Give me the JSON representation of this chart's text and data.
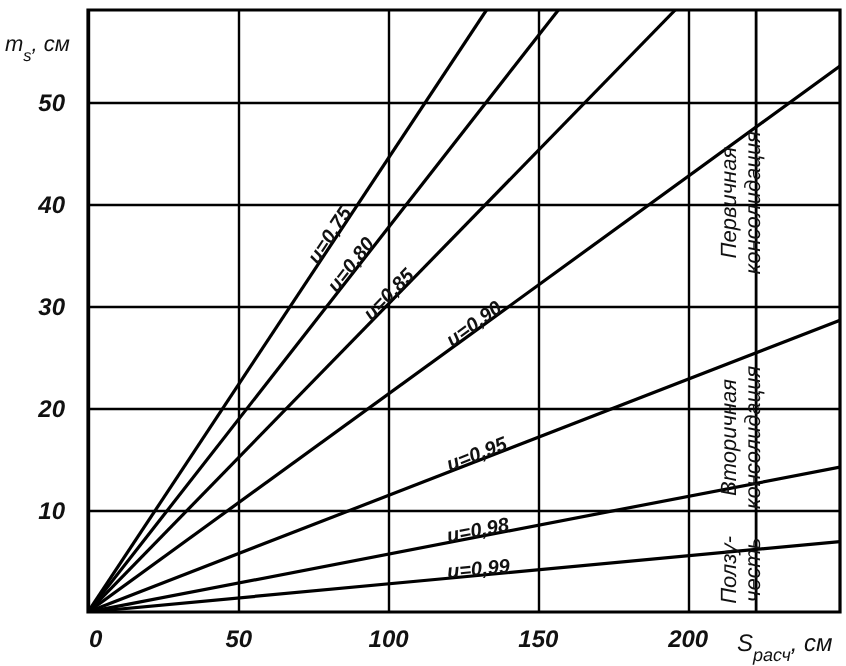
{
  "chart_data": {
    "type": "line",
    "xlabel": "S$_{расч}$, см",
    "ylabel": "m$_{s}$, см",
    "xlim": [
      0,
      251
    ],
    "ylim": [
      0,
      59
    ],
    "xticks": [
      0,
      50,
      100,
      150,
      200
    ],
    "yticks": [
      10,
      20,
      30,
      40,
      50
    ],
    "grid": true,
    "line_style": "solid",
    "marker": "none",
    "series": [
      {
        "name": "u=0,75",
        "color": "#000000",
        "x": [
          0,
          133
        ],
        "values": [
          0,
          59
        ]
      },
      {
        "name": "u=0,80",
        "color": "#000000",
        "x": [
          0,
          157
        ],
        "values": [
          0,
          59
        ]
      },
      {
        "name": "u=0,85",
        "color": "#000000",
        "x": [
          0,
          196
        ],
        "values": [
          0,
          59
        ]
      },
      {
        "name": "u=0,90",
        "color": "#000000",
        "x": [
          0,
          251
        ],
        "values": [
          0,
          53.5
        ]
      },
      {
        "name": "u=0,95",
        "color": "#000000",
        "x": [
          0,
          251
        ],
        "values": [
          0,
          28.6
        ]
      },
      {
        "name": "u=0,98",
        "color": "#000000",
        "x": [
          0,
          251
        ],
        "values": [
          0,
          14.2
        ]
      },
      {
        "name": "u=0,99",
        "color": "#000000",
        "x": [
          0,
          251
        ],
        "values": [
          0,
          6.9
        ]
      }
    ],
    "ref_lines": [
      {
        "axis": "x",
        "value": 223
      }
    ],
    "annotations": [
      "Первичная консолидация",
      "Вторичная консолидация",
      "Ползу- честь"
    ]
  }
}
